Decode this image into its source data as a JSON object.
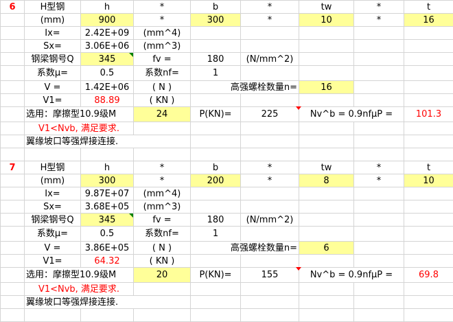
{
  "highlight_color": "#ffff99",
  "alert_color": "#ff0000",
  "blocks": [
    {
      "index": "6",
      "section": "H型钢",
      "h_label": "h",
      "times": "*",
      "b_label": "b",
      "tw_label": "tw",
      "t_label": "t",
      "unit_mm": "(mm)",
      "h": "900",
      "b": "300",
      "tw": "10",
      "t": "16",
      "ix_label": "Ix=",
      "ix": "2.42E+09",
      "ix_unit": "(mm^4)",
      "sx_label": "Sx=",
      "sx": "3.06E+06",
      "sx_unit": "(mm^3)",
      "steel_label": "钢梁钢号Q",
      "steel": "345",
      "fv_label": "fv =",
      "fv": "180",
      "fv_unit": "(N/mm^2)",
      "mu_label": "系数μ=",
      "mu": "0.5",
      "nf_label": "系数nf=",
      "nf": "1",
      "v_label": "V =",
      "v": "1.42E+06",
      "v_unit": "( N )",
      "n_label": "高强螺栓数量n=",
      "n": "16",
      "v1_label": "V1=",
      "v1": "88.89",
      "v1_unit": "( KN )",
      "bolt_label": "选用：摩擦型10.9级M",
      "bolt": "24",
      "p_label": "P(KN)=",
      "p": "225",
      "nvb_label": "Nv^b = 0.9nfμP =",
      "nvb": "101.3",
      "check": "V1<Nvb,  满足要求.",
      "weld": "翼缘坡口等强焊接连接."
    },
    {
      "index": "7",
      "section": "H型钢",
      "h_label": "h",
      "times": "*",
      "b_label": "b",
      "tw_label": "tw",
      "t_label": "t",
      "unit_mm": "(mm)",
      "h": "300",
      "b": "200",
      "tw": "8",
      "t": "10",
      "ix_label": "Ix=",
      "ix": "9.87E+07",
      "ix_unit": "(mm^4)",
      "sx_label": "Sx=",
      "sx": "3.68E+05",
      "sx_unit": "(mm^3)",
      "steel_label": "钢梁钢号Q",
      "steel": "345",
      "fv_label": "fv =",
      "fv": "180",
      "fv_unit": "(N/mm^2)",
      "mu_label": "系数μ=",
      "mu": "0.5",
      "nf_label": "系数nf=",
      "nf": "1",
      "v_label": "V =",
      "v": "3.86E+05",
      "v_unit": "( N )",
      "n_label": "高强螺栓数量n=",
      "n": "6",
      "v1_label": "V1=",
      "v1": "64.32",
      "v1_unit": "( KN )",
      "bolt_label": "选用：摩擦型10.9级M",
      "bolt": "20",
      "p_label": "P(KN)=",
      "p": "155",
      "nvb_label": "Nv^b = 0.9nfμP =",
      "nvb": "69.8",
      "check": "V1<Nvb,  满足要求.",
      "weld": "翼缘坡口等强焊接连接."
    }
  ]
}
